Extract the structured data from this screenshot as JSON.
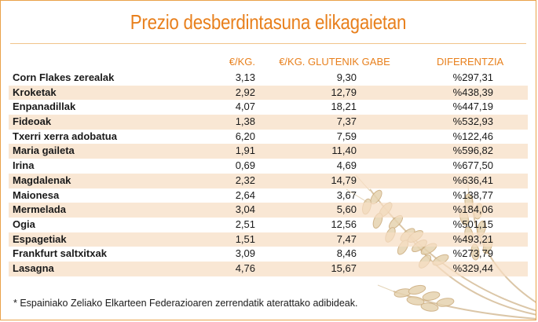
{
  "title": "Prezio desberdintasuna elikagaietan",
  "headers": {
    "price": "€/KG.",
    "gluten_free": "€/KG. GLUTENIK GABE",
    "difference": "DIFERENTZIA"
  },
  "rows": [
    {
      "name": "Corn Flakes zerealak",
      "price": "3,13",
      "gluten_free": "9,30",
      "difference": "%297,31"
    },
    {
      "name": "Kroketak",
      "price": "2,92",
      "gluten_free": "12,79",
      "difference": "%438,39"
    },
    {
      "name": "Enpanadillak",
      "price": "4,07",
      "gluten_free": "18,21",
      "difference": "%447,19"
    },
    {
      "name": "Fideoak",
      "price": "1,38",
      "gluten_free": "7,37",
      "difference": "%532,93"
    },
    {
      "name": "Txerri xerra adobatua",
      "price": "6,20",
      "gluten_free": "7,59",
      "difference": "%122,46"
    },
    {
      "name": "Maria gaileta",
      "price": "1,91",
      "gluten_free": "11,40",
      "difference": "%596,82"
    },
    {
      "name": "Irina",
      "price": "0,69",
      "gluten_free": "4,69",
      "difference": "%677,50"
    },
    {
      "name": "Magdalenak",
      "price": "2,32",
      "gluten_free": "14,79",
      "difference": "%636,41"
    },
    {
      "name": "Maionesa",
      "price": "2,64",
      "gluten_free": "3,67",
      "difference": "%138,77"
    },
    {
      "name": "Mermelada",
      "price": "3,04",
      "gluten_free": "5,60",
      "difference": "%184,06"
    },
    {
      "name": "Ogia",
      "price": "2,51",
      "gluten_free": "12,56",
      "difference": "%501,15"
    },
    {
      "name": "Espagetiak",
      "price": "1,51",
      "gluten_free": "7,47",
      "difference": "%493,21"
    },
    {
      "name": "Frankfurt saltxitxak",
      "price": "3,09",
      "gluten_free": "8,46",
      "difference": "%273,79"
    },
    {
      "name": "Lasagna",
      "price": "4,76",
      "gluten_free": "15,67",
      "difference": "%329,44"
    }
  ],
  "footnote": "* Espainiako Zeliako Elkarteen Federazioaren zerrendatik aterattako adibideak."
}
